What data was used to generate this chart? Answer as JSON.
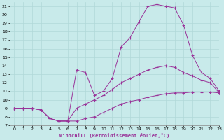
{
  "xlabel": "Windchill (Refroidissement éolien,°C)",
  "xlim": [
    -0.5,
    23
  ],
  "ylim": [
    7,
    21.5
  ],
  "xticks": [
    0,
    1,
    2,
    3,
    4,
    5,
    6,
    7,
    8,
    9,
    10,
    11,
    12,
    13,
    14,
    15,
    16,
    17,
    18,
    19,
    20,
    21,
    22,
    23
  ],
  "yticks": [
    7,
    8,
    9,
    10,
    11,
    12,
    13,
    14,
    15,
    16,
    17,
    18,
    19,
    20,
    21
  ],
  "bg_color": "#c8eaea",
  "grid_color": "#b0d8d8",
  "line_color": "#993399",
  "line1_x": [
    0,
    1,
    2,
    3,
    4,
    5,
    6,
    7,
    8,
    9,
    10,
    11,
    12,
    13,
    14,
    15,
    16,
    17,
    18,
    19,
    20,
    21,
    22,
    23
  ],
  "line1_y": [
    9.0,
    9.0,
    9.0,
    8.8,
    7.8,
    7.5,
    7.5,
    7.5,
    7.8,
    8.0,
    8.5,
    9.0,
    9.5,
    9.8,
    10.0,
    10.3,
    10.5,
    10.7,
    10.8,
    10.8,
    10.9,
    10.9,
    10.9,
    10.8
  ],
  "line2_x": [
    0,
    1,
    2,
    3,
    4,
    5,
    6,
    7,
    8,
    9,
    10,
    11,
    12,
    13,
    14,
    15,
    16,
    17,
    18,
    19,
    20,
    21,
    22,
    23
  ],
  "line2_y": [
    9.0,
    9.0,
    9.0,
    8.8,
    7.8,
    7.5,
    7.5,
    9.0,
    9.5,
    10.0,
    10.5,
    11.2,
    12.0,
    12.5,
    13.0,
    13.5,
    13.8,
    14.0,
    13.8,
    13.2,
    12.8,
    12.3,
    12.0,
    10.8
  ],
  "line3_x": [
    0,
    1,
    2,
    3,
    4,
    5,
    6,
    7,
    8,
    9,
    10,
    11,
    12,
    13,
    14,
    15,
    16,
    17,
    18,
    19,
    20,
    21,
    22,
    23
  ],
  "line3_y": [
    9.0,
    9.0,
    9.0,
    8.8,
    7.8,
    7.5,
    7.5,
    13.5,
    13.2,
    10.5,
    11.0,
    12.5,
    16.2,
    17.3,
    19.2,
    21.0,
    21.2,
    21.0,
    20.8,
    18.8,
    15.2,
    13.2,
    12.5,
    11.0
  ]
}
